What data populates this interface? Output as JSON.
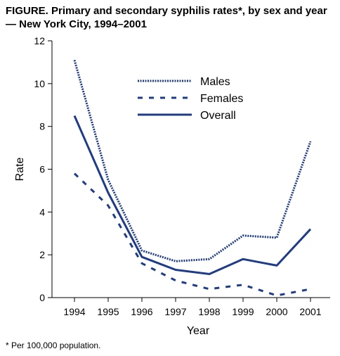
{
  "title": "FIGURE. Primary and secondary syphilis rates*, by sex and year — New York City, 1994–2001",
  "footnote": "* Per 100,000 population.",
  "chart_data": {
    "type": "line",
    "title": "FIGURE. Primary and secondary syphilis rates*, by sex and year — New York City, 1994–2001",
    "xlabel": "Year",
    "ylabel": "Rate",
    "x": [
      "1994",
      "1995",
      "1996",
      "1997",
      "1998",
      "1999",
      "2000",
      "2001"
    ],
    "yticks": [
      "0",
      "2",
      "4",
      "6",
      "8",
      "10",
      "12"
    ],
    "ylim": [
      0,
      12
    ],
    "grid": false,
    "legend": "top-center",
    "color": "#1f3c88",
    "series": [
      {
        "name": "Males",
        "style": "dotted",
        "values": [
          11.1,
          5.5,
          2.2,
          1.7,
          1.8,
          2.9,
          2.8,
          7.3
        ]
      },
      {
        "name": "Females",
        "style": "dashed",
        "values": [
          5.8,
          4.3,
          1.6,
          0.8,
          0.4,
          0.6,
          0.1,
          0.4
        ]
      },
      {
        "name": "Overall",
        "style": "solid",
        "values": [
          8.5,
          4.9,
          1.9,
          1.3,
          1.1,
          1.8,
          1.5,
          3.2
        ]
      }
    ]
  }
}
